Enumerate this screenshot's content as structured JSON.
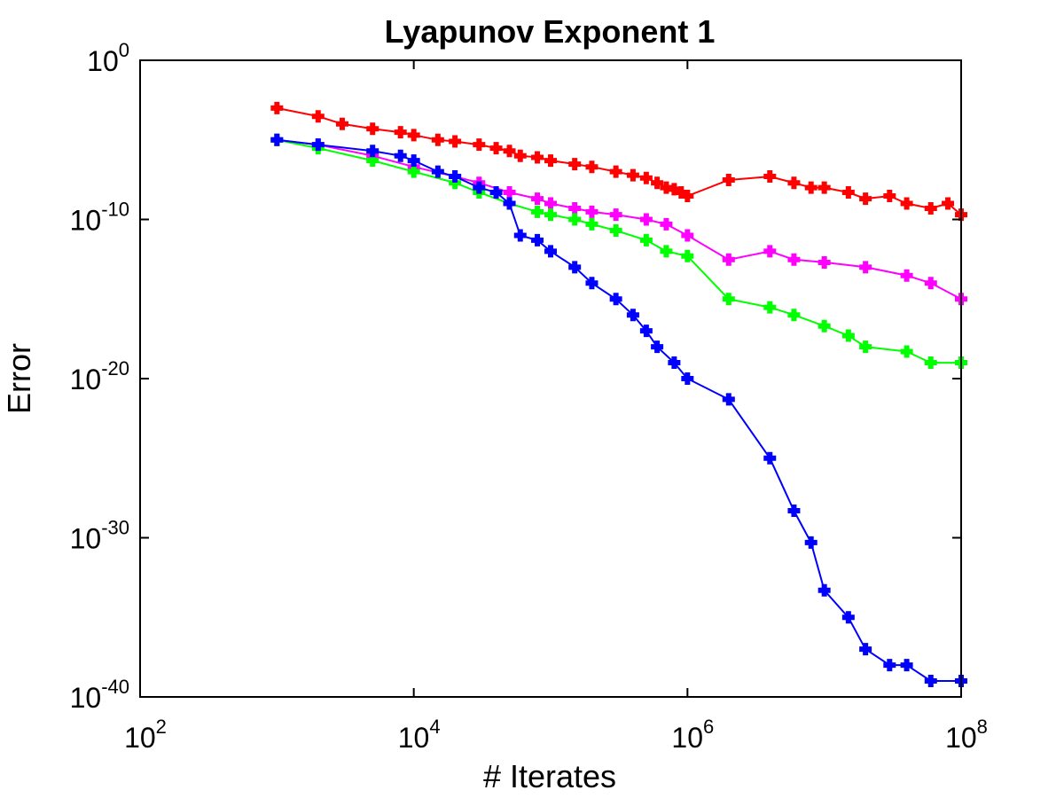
{
  "chart_data": {
    "type": "line",
    "title": "Lyapunov Exponent 1",
    "xlabel": "# Iterates",
    "ylabel": "Error",
    "x_scale": "log",
    "y_scale": "log",
    "xlim": [
      100,
      100000000
    ],
    "ylim": [
      1e-40,
      1
    ],
    "x_ticks": [
      {
        "base": "10",
        "exp": "2"
      },
      {
        "base": "10",
        "exp": "4"
      },
      {
        "base": "10",
        "exp": "6"
      },
      {
        "base": "10",
        "exp": "8"
      }
    ],
    "y_ticks": [
      {
        "base": "10",
        "exp": "0"
      },
      {
        "base": "10",
        "exp": "-10"
      },
      {
        "base": "10",
        "exp": "-20"
      },
      {
        "base": "10",
        "exp": "-30"
      },
      {
        "base": "10",
        "exp": "-40"
      }
    ],
    "grid": false,
    "legend": "none",
    "marker": "plus",
    "series": [
      {
        "color": "#ff0000",
        "x": [
          1000,
          2000,
          3000,
          5000,
          8000,
          10000,
          15000,
          20000,
          30000,
          40000,
          50000,
          60000,
          80000,
          100000,
          150000,
          200000,
          300000,
          400000,
          500000,
          600000,
          700000,
          800000,
          900000,
          1000000,
          2000000,
          4000000,
          6000000,
          8000000,
          10000000,
          15000000,
          20000000,
          30000000,
          40000000,
          60000000,
          80000000,
          100000000
        ],
        "y": [
          0.001,
          0.0003,
          0.0001,
          5e-05,
          3e-05,
          2e-05,
          1e-05,
          8e-06,
          5e-06,
          3e-06,
          2e-06,
          1e-06,
          8e-07,
          5e-07,
          3e-07,
          2e-07,
          1e-07,
          6e-08,
          4e-08,
          2e-08,
          1e-08,
          8e-09,
          5e-09,
          3e-09,
          3e-08,
          5e-08,
          2e-08,
          1e-08,
          1e-08,
          5e-09,
          2e-09,
          3e-09,
          1e-09,
          5e-10,
          1e-09,
          2e-10
        ]
      },
      {
        "color": "#ff00ff",
        "x": [
          1000,
          2000,
          5000,
          10000,
          20000,
          30000,
          50000,
          80000,
          100000,
          150000,
          200000,
          300000,
          500000,
          700000,
          1000000,
          2000000,
          4000000,
          6000000,
          10000000,
          20000000,
          40000000,
          60000000,
          100000000
        ],
        "y": [
          1e-05,
          5e-06,
          1e-06,
          2e-07,
          5e-08,
          2e-08,
          5e-09,
          2e-09,
          1e-09,
          5e-10,
          3e-10,
          2e-10,
          1e-10,
          5e-11,
          1e-11,
          3e-13,
          1e-12,
          3e-13,
          2e-13,
          1e-13,
          3e-14,
          1e-14,
          1e-15
        ]
      },
      {
        "color": "#00ff00",
        "x": [
          1000,
          2000,
          5000,
          10000,
          20000,
          30000,
          50000,
          80000,
          100000,
          150000,
          200000,
          300000,
          500000,
          700000,
          1000000,
          2000000,
          4000000,
          6000000,
          10000000,
          15000000,
          20000000,
          40000000,
          60000000,
          100000000
        ],
        "y": [
          1e-05,
          3e-06,
          5e-07,
          1e-07,
          2e-08,
          5e-09,
          1e-09,
          3e-10,
          2e-10,
          1e-10,
          5e-11,
          2e-11,
          5e-12,
          1e-12,
          5e-13,
          1e-15,
          3e-16,
          1e-16,
          2e-17,
          5e-18,
          1e-18,
          5e-19,
          1e-19,
          1e-19
        ]
      },
      {
        "color": "#0000ff",
        "x": [
          1000,
          2000,
          5000,
          8000,
          10000,
          15000,
          20000,
          30000,
          40000,
          50000,
          60000,
          80000,
          100000,
          150000,
          200000,
          300000,
          400000,
          500000,
          600000,
          800000,
          1000000,
          2000000,
          4000000,
          6000000,
          8000000,
          10000000,
          15000000,
          20000000,
          30000000,
          40000000,
          60000000,
          100000000
        ],
        "y": [
          1e-05,
          5e-06,
          2e-06,
          1e-06,
          5e-07,
          1e-07,
          5e-08,
          1e-08,
          5e-09,
          1e-09,
          1e-11,
          5e-12,
          1e-12,
          1e-13,
          1e-14,
          1e-15,
          1e-16,
          1e-17,
          1e-18,
          1e-19,
          1e-20,
          5e-22,
          1e-25,
          5e-29,
          5e-31,
          5e-34,
          1e-35,
          1e-37,
          1e-38,
          1e-38,
          1e-39,
          1e-39
        ]
      }
    ]
  }
}
